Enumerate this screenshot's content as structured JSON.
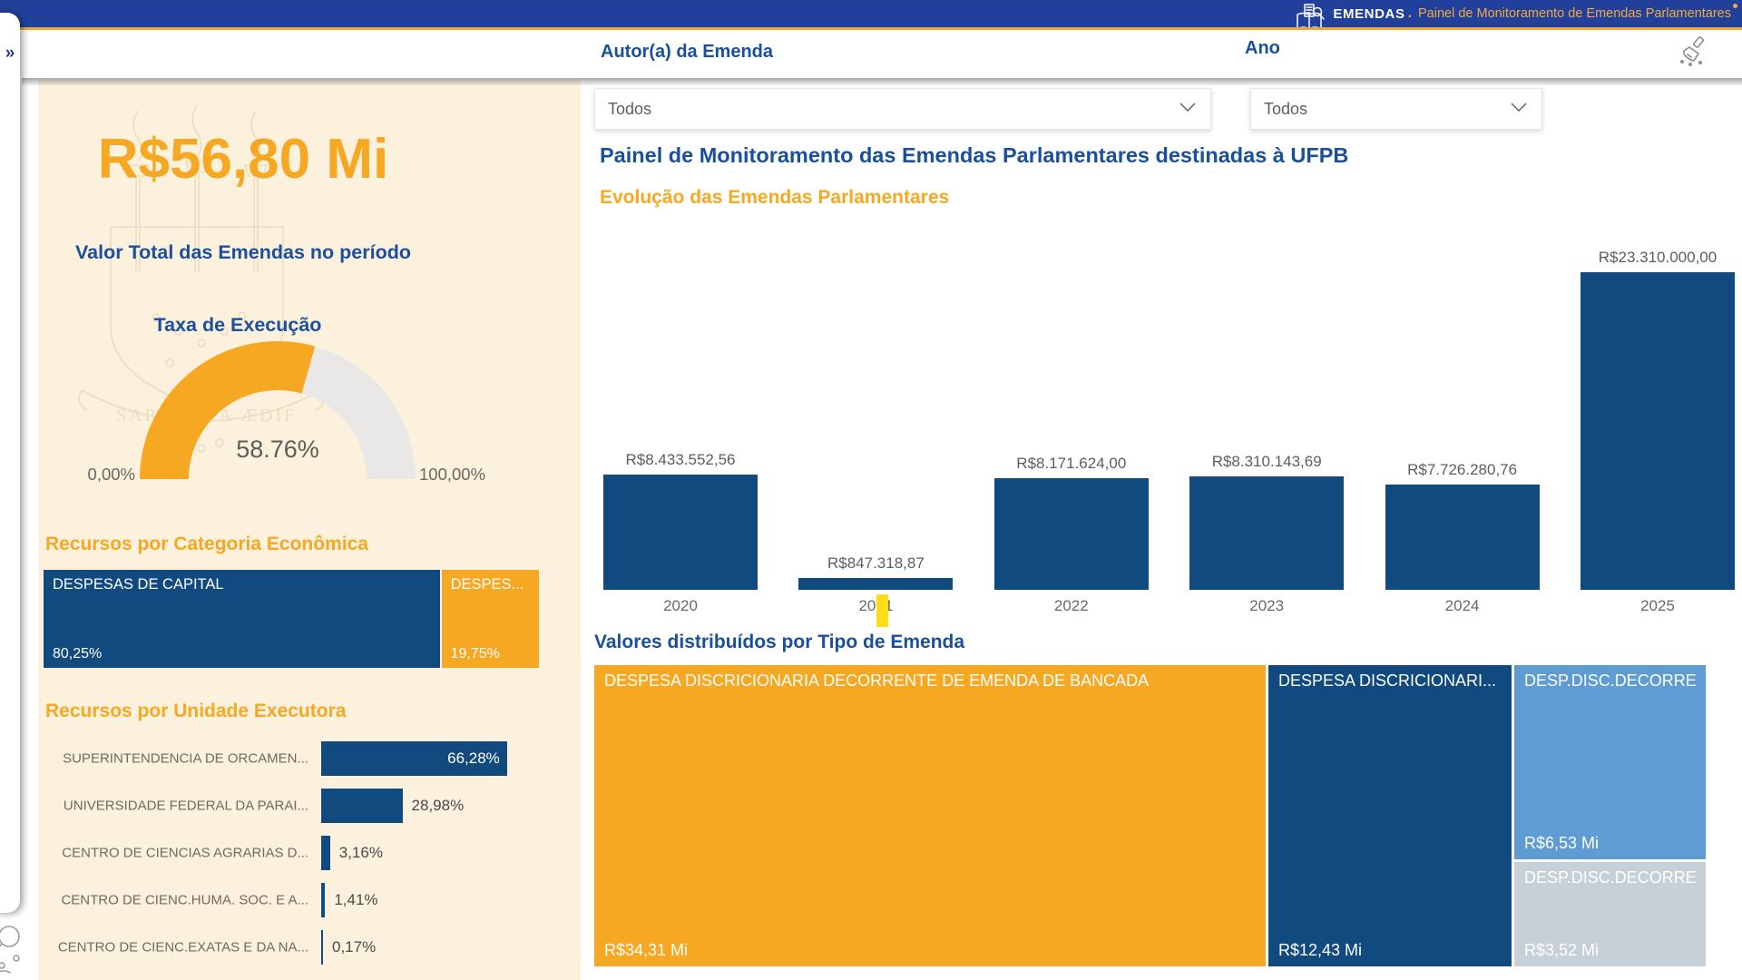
{
  "topbar": {
    "brand": "EMENDAS",
    "dot": ".",
    "subtitle": "Painel de Monitoramento de Emendas Parlamentares"
  },
  "filters": {
    "author_label": "Autor(a) da Emenda",
    "author_value": "Todos",
    "year_label": "Ano",
    "year_value": "Todos"
  },
  "kpi": {
    "value": "R$56,80 Mi",
    "label": "Valor Total das Emendas no período"
  },
  "main": {
    "title": "Painel de Monitoramento das Emendas Parlamentares destinadas à UFPB"
  },
  "colors": {
    "topbar_bg": "#21409B",
    "accent_orange": "#F7A823",
    "dark_blue_bar": "#114A7E",
    "title_blue": "#1A4F9C",
    "cream_panel": "#FBF1DC",
    "gauge_rest": "#E9E8E6",
    "medium_blue": "#5E9CD3",
    "light_gray_blue": "#C7D0D6",
    "yellow_marker": "#FFDD17"
  },
  "chart_data": [
    {
      "id": "gauge_execucao",
      "type": "gauge",
      "title": "Taxa de Execução",
      "value": 58.76,
      "value_label": "58.76%",
      "min_label": "0,00%",
      "max_label": "100,00%",
      "range": [
        0,
        100
      ]
    },
    {
      "id": "categoria_economica",
      "type": "bar",
      "variant": "stacked-100-horizontal",
      "title": "Recursos por Categoria Econômica",
      "series": [
        {
          "name": "DESPESAS DE CAPITAL",
          "value": 80.25,
          "label": "80,25%",
          "color": "#114A7E"
        },
        {
          "name": "DESPES...",
          "value": 19.75,
          "label": "19,75%",
          "color": "#F7A823"
        }
      ]
    },
    {
      "id": "unidade_executora",
      "type": "bar",
      "variant": "horizontal",
      "title": "Recursos por Unidade Executora",
      "categories": [
        "SUPERINTENDENCIA DE ORCAMEN...",
        "UNIVERSIDADE FEDERAL DA PARAI...",
        "CENTRO DE CIENCIAS AGRARIAS D...",
        "CENTRO DE CIENC.HUMA. SOC. E A...",
        "CENTRO DE CIENC.EXATAS E DA NA..."
      ],
      "values": [
        66.28,
        28.98,
        3.16,
        1.41,
        0.17
      ],
      "value_labels": [
        "66,28%",
        "28,98%",
        "3,16%",
        "1,41%",
        "0,17%"
      ]
    },
    {
      "id": "evolucao",
      "type": "bar",
      "title": "Evolução das Emendas Parlamentares",
      "categories": [
        "2020",
        "2021",
        "2022",
        "2023",
        "2024",
        "2025"
      ],
      "values": [
        8433552.56,
        847318.87,
        8171624.0,
        8310143.69,
        7726280.76,
        23310000.0
      ],
      "data_labels": [
        "R$8.433.552,56",
        "R$847.318,87",
        "R$8.171.624,00",
        "R$8.310.143,69",
        "R$7.726.280,76",
        "R$23.310.000,00"
      ],
      "xlabel": "",
      "ylabel": "",
      "ylim": [
        0,
        23310000
      ],
      "grid": false,
      "legend": "none"
    },
    {
      "id": "treemap_tipo",
      "type": "treemap",
      "title": "Valores distribuídos por Tipo de Emenda",
      "items": [
        {
          "label": "DESPESA DISCRICIONARIA DECORRENTE DE EMENDA DE BANCADA",
          "value": 34.31,
          "value_label": "R$34,31 Mi",
          "color": "#F7A823"
        },
        {
          "label": "DESPESA DISCRICIONARI...",
          "value": 12.43,
          "value_label": "R$12,43 Mi",
          "color": "#114A7E"
        },
        {
          "label": "DESP.DISC.DECORRE...",
          "value": 6.53,
          "value_label": "R$6,53 Mi",
          "color": "#5E9CD3"
        },
        {
          "label": "DESP.DISC.DECORRE...",
          "value": 3.52,
          "value_label": "R$3,52 Mi",
          "color": "#C7D0D6"
        }
      ]
    }
  ]
}
